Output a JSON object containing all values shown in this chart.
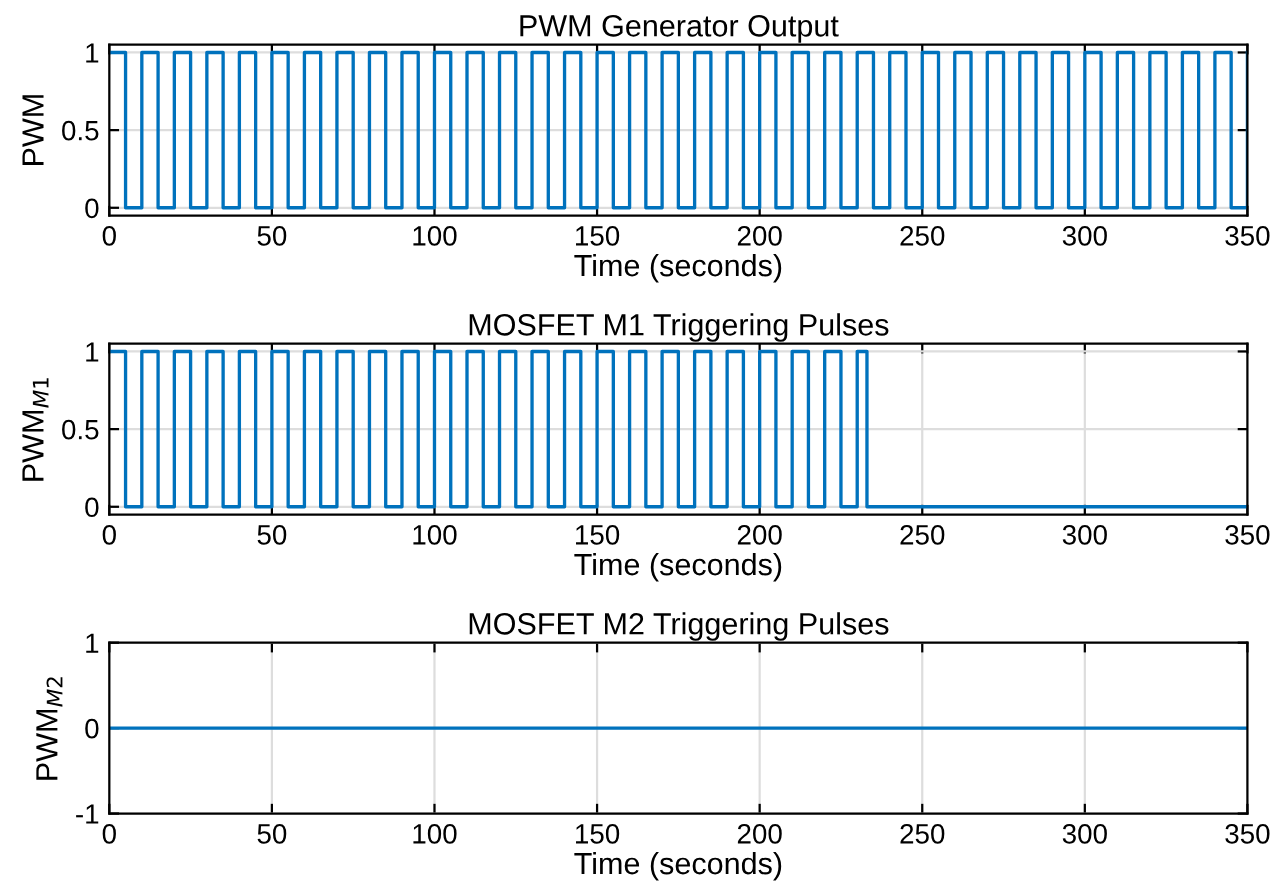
{
  "chart_data": [
    {
      "type": "step",
      "title": "PWM Generator Output",
      "xlabel": "Time (seconds)",
      "ylabel": "PWM",
      "xlim": [
        0,
        350
      ],
      "xticks": [
        0,
        50,
        100,
        150,
        200,
        250,
        300,
        350
      ],
      "ylim": [
        -0.05,
        1.05
      ],
      "yticks": [
        0,
        0.5,
        1
      ],
      "grid": true,
      "series": [
        {
          "color": "#0072bd",
          "x": [
            0,
            5,
            10,
            15,
            20,
            25,
            30,
            35,
            40,
            45,
            50,
            55,
            60,
            65,
            70,
            75,
            80,
            85,
            90,
            95,
            100,
            105,
            110,
            115,
            120,
            125,
            130,
            135,
            140,
            145,
            150,
            155,
            160,
            165,
            170,
            175,
            180,
            185,
            190,
            195,
            200,
            205,
            210,
            215,
            220,
            225,
            230,
            235,
            240,
            245,
            250,
            255,
            260,
            265,
            270,
            275,
            280,
            285,
            290,
            295,
            300,
            305,
            310,
            315,
            320,
            325,
            330,
            335,
            340,
            345,
            350
          ],
          "values": [
            1,
            0,
            1,
            0,
            1,
            0,
            1,
            0,
            1,
            0,
            1,
            0,
            1,
            0,
            1,
            0,
            1,
            0,
            1,
            0,
            1,
            0,
            1,
            0,
            1,
            0,
            1,
            0,
            1,
            0,
            1,
            0,
            1,
            0,
            1,
            0,
            1,
            0,
            1,
            0,
            1,
            0,
            1,
            0,
            1,
            0,
            1,
            0,
            1,
            0,
            1,
            0,
            1,
            0,
            1,
            0,
            1,
            0,
            1,
            0,
            1,
            0,
            1,
            0,
            1,
            0,
            1,
            0,
            1,
            0,
            1
          ]
        }
      ]
    },
    {
      "type": "step",
      "title": "MOSFET M1 Triggering Pulses",
      "xlabel": "Time (seconds)",
      "ylabel": "PWM$_{M1}$",
      "xlim": [
        0,
        350
      ],
      "xticks": [
        0,
        50,
        100,
        150,
        200,
        250,
        300,
        350
      ],
      "ylim": [
        -0.05,
        1.05
      ],
      "yticks": [
        0,
        0.5,
        1
      ],
      "grid": true,
      "series": [
        {
          "color": "#0072bd",
          "x": [
            0,
            5,
            10,
            15,
            20,
            25,
            30,
            35,
            40,
            45,
            50,
            55,
            60,
            65,
            70,
            75,
            80,
            85,
            90,
            95,
            100,
            105,
            110,
            115,
            120,
            125,
            130,
            135,
            140,
            145,
            150,
            155,
            160,
            165,
            170,
            175,
            180,
            185,
            190,
            195,
            200,
            205,
            210,
            215,
            220,
            225,
            230,
            233,
            350
          ],
          "values": [
            1,
            0,
            1,
            0,
            1,
            0,
            1,
            0,
            1,
            0,
            1,
            0,
            1,
            0,
            1,
            0,
            1,
            0,
            1,
            0,
            1,
            0,
            1,
            0,
            1,
            0,
            1,
            0,
            1,
            0,
            1,
            0,
            1,
            0,
            1,
            0,
            1,
            0,
            1,
            0,
            1,
            0,
            1,
            0,
            1,
            0,
            1,
            0,
            0
          ]
        }
      ]
    },
    {
      "type": "step",
      "title": "MOSFET M2 Triggering Pulses",
      "xlabel": "Time (seconds)",
      "ylabel": "PWM$_{M2}$",
      "xlim": [
        0,
        350
      ],
      "xticks": [
        0,
        50,
        100,
        150,
        200,
        250,
        300,
        350
      ],
      "ylim": [
        -1,
        1
      ],
      "yticks": [
        {
          "value": -1,
          "label": "-1"
        },
        0,
        1
      ],
      "grid": true,
      "series": [
        {
          "color": "#0072bd",
          "x": [
            0,
            350
          ],
          "values": [
            0,
            0
          ]
        }
      ]
    }
  ]
}
